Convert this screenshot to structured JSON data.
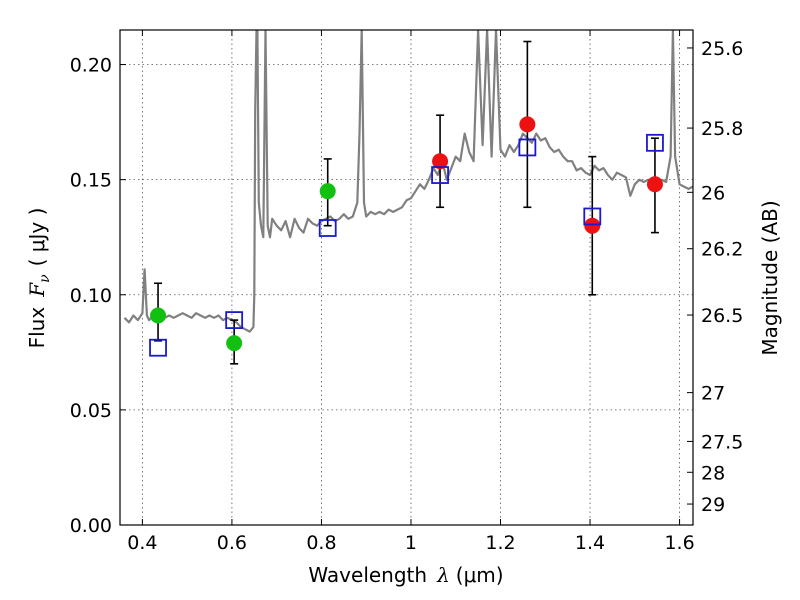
{
  "chart_data": {
    "type": "scatter",
    "title": "",
    "xlabel": "Wavelength  λ (μm)",
    "xlabel_parts": {
      "text": "Wavelength",
      "symbol": "λ",
      "unit": "(μm)"
    },
    "ylabel": "Flux  Fν  ( μJy )",
    "ylabel_parts": {
      "text": "Flux",
      "symbol": "F",
      "subscript": "ν",
      "unit": "( μJy )"
    },
    "y2label": "Magnitude (AB)",
    "xlim": [
      0.35,
      1.63
    ],
    "ylim": [
      0.0,
      0.215
    ],
    "x_ticks": [
      {
        "value": 0.4,
        "label": "0.4"
      },
      {
        "value": 0.6,
        "label": "0.6"
      },
      {
        "value": 0.8,
        "label": "0.8"
      },
      {
        "value": 1.0,
        "label": "1"
      },
      {
        "value": 1.2,
        "label": "1.2"
      },
      {
        "value": 1.4,
        "label": "1.4"
      },
      {
        "value": 1.6,
        "label": "1.6"
      }
    ],
    "y_ticks": [
      {
        "value": 0.0,
        "label": "0.00"
      },
      {
        "value": 0.05,
        "label": "0.05"
      },
      {
        "value": 0.1,
        "label": "0.10"
      },
      {
        "value": 0.15,
        "label": "0.15"
      },
      {
        "value": 0.2,
        "label": "0.20"
      }
    ],
    "y2_ticks": [
      {
        "flux": 0.2072,
        "label": "25.6"
      },
      {
        "flux": 0.1724,
        "label": "25.8"
      },
      {
        "flux": 0.1445,
        "label": "26"
      },
      {
        "flux": 0.12,
        "label": "26.2"
      },
      {
        "flux": 0.0912,
        "label": "26.5"
      },
      {
        "flux": 0.0575,
        "label": "27"
      },
      {
        "flux": 0.0363,
        "label": "27.5"
      },
      {
        "flux": 0.0229,
        "label": "28"
      },
      {
        "flux": 0.0091,
        "label": "29"
      }
    ],
    "grid": true,
    "model_spectrum": {
      "color": "#808080",
      "x": [
        0.36,
        0.37,
        0.38,
        0.39,
        0.4,
        0.405,
        0.41,
        0.415,
        0.42,
        0.43,
        0.44,
        0.45,
        0.46,
        0.47,
        0.48,
        0.49,
        0.5,
        0.51,
        0.52,
        0.53,
        0.54,
        0.55,
        0.56,
        0.57,
        0.58,
        0.59,
        0.6,
        0.61,
        0.62,
        0.63,
        0.64,
        0.648,
        0.65,
        0.652,
        0.655,
        0.657,
        0.66,
        0.665,
        0.67,
        0.675,
        0.68,
        0.685,
        0.69,
        0.7,
        0.71,
        0.72,
        0.73,
        0.74,
        0.75,
        0.76,
        0.77,
        0.78,
        0.79,
        0.8,
        0.81,
        0.82,
        0.83,
        0.84,
        0.85,
        0.86,
        0.87,
        0.88,
        0.885,
        0.89,
        0.895,
        0.9,
        0.91,
        0.92,
        0.93,
        0.94,
        0.95,
        0.96,
        0.97,
        0.98,
        0.99,
        1.0,
        1.01,
        1.02,
        1.03,
        1.04,
        1.05,
        1.06,
        1.07,
        1.08,
        1.09,
        1.1,
        1.11,
        1.12,
        1.13,
        1.14,
        1.15,
        1.16,
        1.17,
        1.18,
        1.19,
        1.2,
        1.21,
        1.22,
        1.23,
        1.24,
        1.25,
        1.26,
        1.27,
        1.28,
        1.29,
        1.3,
        1.31,
        1.32,
        1.33,
        1.34,
        1.35,
        1.36,
        1.37,
        1.38,
        1.39,
        1.4,
        1.41,
        1.42,
        1.43,
        1.44,
        1.45,
        1.46,
        1.47,
        1.48,
        1.49,
        1.5,
        1.51,
        1.52,
        1.53,
        1.54,
        1.55,
        1.56,
        1.57,
        1.58,
        1.585,
        1.59,
        1.6,
        1.61,
        1.62,
        1.63
      ],
      "y": [
        0.09,
        0.088,
        0.091,
        0.089,
        0.092,
        0.111,
        0.091,
        0.089,
        0.09,
        0.091,
        0.092,
        0.09,
        0.091,
        0.09,
        0.091,
        0.092,
        0.091,
        0.09,
        0.092,
        0.091,
        0.09,
        0.091,
        0.09,
        0.091,
        0.089,
        0.09,
        0.089,
        0.088,
        0.086,
        0.085,
        0.084,
        0.086,
        0.1,
        0.18,
        0.215,
        0.215,
        0.14,
        0.13,
        0.125,
        0.215,
        0.13,
        0.125,
        0.133,
        0.13,
        0.128,
        0.132,
        0.125,
        0.133,
        0.129,
        0.127,
        0.133,
        0.131,
        0.13,
        0.132,
        0.133,
        0.134,
        0.132,
        0.133,
        0.135,
        0.133,
        0.134,
        0.14,
        0.17,
        0.215,
        0.14,
        0.134,
        0.136,
        0.135,
        0.136,
        0.135,
        0.137,
        0.136,
        0.137,
        0.138,
        0.141,
        0.142,
        0.145,
        0.148,
        0.146,
        0.15,
        0.155,
        0.152,
        0.158,
        0.15,
        0.155,
        0.16,
        0.158,
        0.17,
        0.162,
        0.158,
        0.215,
        0.165,
        0.215,
        0.16,
        0.215,
        0.163,
        0.16,
        0.165,
        0.162,
        0.165,
        0.17,
        0.168,
        0.166,
        0.17,
        0.167,
        0.168,
        0.164,
        0.162,
        0.163,
        0.16,
        0.158,
        0.158,
        0.154,
        0.155,
        0.153,
        0.152,
        0.156,
        0.154,
        0.155,
        0.152,
        0.15,
        0.153,
        0.152,
        0.151,
        0.143,
        0.148,
        0.15,
        0.149,
        0.15,
        0.149,
        0.148,
        0.15,
        0.149,
        0.16,
        0.215,
        0.16,
        0.148,
        0.147,
        0.146,
        0.147
      ]
    },
    "series": [
      {
        "marker": "circle",
        "color": "#11c011",
        "points": [
          {
            "x": 0.435,
            "y": 0.091
          },
          {
            "x": 0.605,
            "y": 0.079
          },
          {
            "x": 0.814,
            "y": 0.145
          }
        ]
      },
      {
        "marker": "circle",
        "color": "#ee1111",
        "points": [
          {
            "x": 1.065,
            "y": 0.158
          },
          {
            "x": 1.26,
            "y": 0.174
          },
          {
            "x": 1.405,
            "y": 0.13
          },
          {
            "x": 1.545,
            "y": 0.148
          }
        ]
      },
      {
        "marker": "open-square",
        "color": "#1a1acc",
        "points": [
          {
            "x": 0.435,
            "y": 0.077
          },
          {
            "x": 0.605,
            "y": 0.089
          },
          {
            "x": 0.814,
            "y": 0.129
          },
          {
            "x": 1.065,
            "y": 0.152
          },
          {
            "x": 1.26,
            "y": 0.164
          },
          {
            "x": 1.405,
            "y": 0.134
          },
          {
            "x": 1.545,
            "y": 0.166
          }
        ]
      }
    ],
    "error_bars": {
      "color": "#000000",
      "points": [
        {
          "x": 0.435,
          "low": 0.08,
          "high": 0.105
        },
        {
          "x": 0.605,
          "low": 0.07,
          "high": 0.089
        },
        {
          "x": 0.814,
          "low": 0.13,
          "high": 0.159
        },
        {
          "x": 1.065,
          "low": 0.138,
          "high": 0.178
        },
        {
          "x": 1.26,
          "low": 0.138,
          "high": 0.21
        },
        {
          "x": 1.405,
          "low": 0.1,
          "high": 0.16
        },
        {
          "x": 1.545,
          "low": 0.127,
          "high": 0.168
        }
      ]
    }
  }
}
